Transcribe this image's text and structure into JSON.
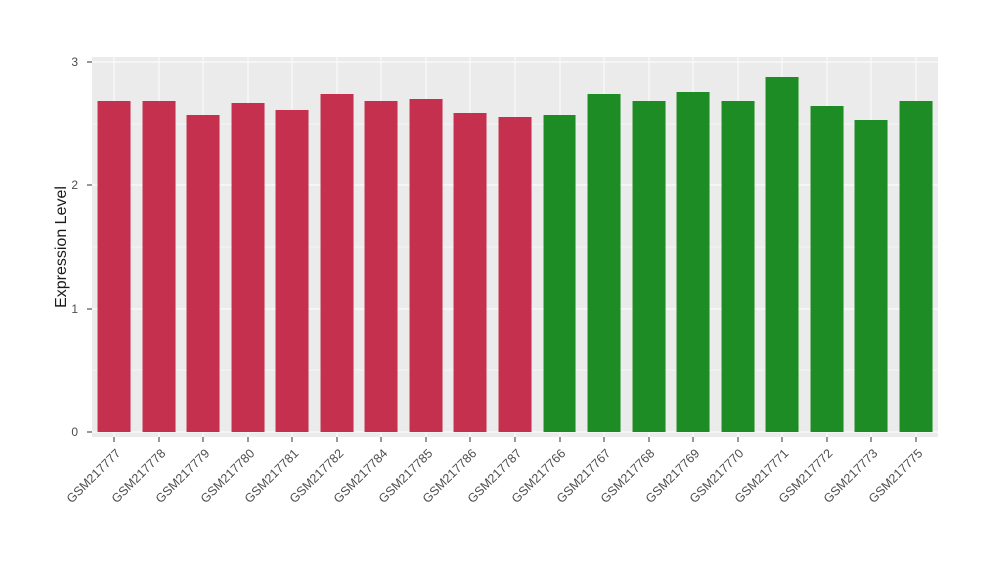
{
  "chart_data": {
    "type": "bar",
    "title": "",
    "xlabel": "",
    "ylabel": "Expression Level",
    "ylim": [
      0,
      3
    ],
    "yticks": [
      0,
      1,
      2,
      3
    ],
    "yticks_minor": [
      0.5,
      1.5,
      2.5
    ],
    "grid": true,
    "legend_position": "none",
    "panel_bg": "#EBEBEB",
    "grid_color": "#FFFFFF",
    "axis_text_color": "#4D4D4D",
    "bar_width_frac": 0.74,
    "categories": [
      "GSM217777",
      "GSM217778",
      "GSM217779",
      "GSM217780",
      "GSM217781",
      "GSM217782",
      "GSM217784",
      "GSM217785",
      "GSM217786",
      "GSM217787",
      "GSM217766",
      "GSM217767",
      "GSM217768",
      "GSM217769",
      "GSM217770",
      "GSM217771",
      "GSM217772",
      "GSM217773",
      "GSM217775"
    ],
    "values": [
      2.68,
      2.68,
      2.57,
      2.67,
      2.61,
      2.74,
      2.68,
      2.7,
      2.59,
      2.55,
      2.57,
      2.74,
      2.68,
      2.76,
      2.68,
      2.88,
      2.64,
      2.53,
      2.68
    ],
    "groups": [
      "red",
      "red",
      "red",
      "red",
      "red",
      "red",
      "red",
      "red",
      "red",
      "red",
      "green",
      "green",
      "green",
      "green",
      "green",
      "green",
      "green",
      "green",
      "green"
    ],
    "group_colors": {
      "red": "#C4304E",
      "green": "#1E8C24"
    }
  }
}
